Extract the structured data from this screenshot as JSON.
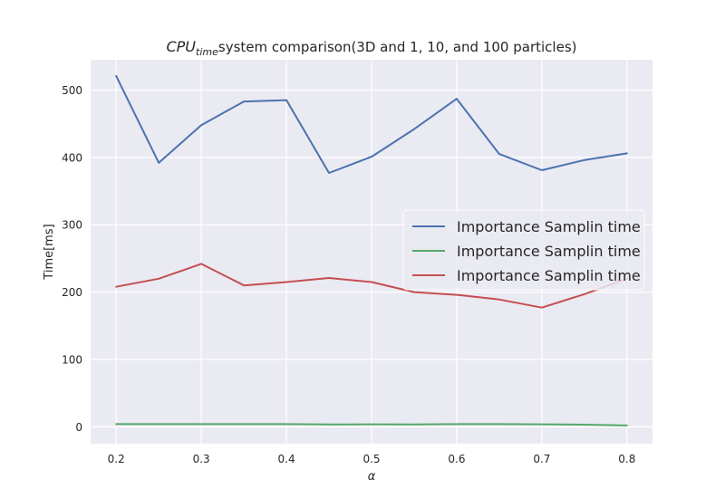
{
  "chart_data": {
    "type": "line",
    "title_main": "CPU",
    "title_sub": "time",
    "title_rest": "system comparison(3D and 1, 10, and 100 particles)",
    "xlabel": "α",
    "ylabel": "Time[ms]",
    "xlim": [
      0.17,
      0.83
    ],
    "ylim": [
      -25,
      545
    ],
    "xticks": [
      0.2,
      0.3,
      0.4,
      0.5,
      0.6,
      0.7,
      0.8
    ],
    "yticks": [
      0,
      100,
      200,
      300,
      400,
      500
    ],
    "grid": true,
    "legend_position": "center-right",
    "x": [
      0.2,
      0.25,
      0.3,
      0.35,
      0.4,
      0.45,
      0.5,
      0.55,
      0.6,
      0.65,
      0.7,
      0.75,
      0.8
    ],
    "series": [
      {
        "name": "Importance Samplin time",
        "color": "#4c72b0",
        "values": [
          521,
          392,
          448,
          483,
          485,
          377,
          401,
          442,
          487,
          405,
          381,
          396,
          406
        ]
      },
      {
        "name": "Importance Samplin time",
        "color": "#55a868",
        "values": [
          4,
          4,
          4,
          4,
          4,
          3.5,
          3.8,
          3.5,
          4,
          4,
          3.8,
          3.2,
          2
        ]
      },
      {
        "name": "Importance Samplin time",
        "color": "#c44e52",
        "values": [
          208,
          220,
          242,
          210,
          215,
          221,
          215,
          200,
          196,
          189,
          177,
          197,
          220
        ]
      }
    ]
  }
}
